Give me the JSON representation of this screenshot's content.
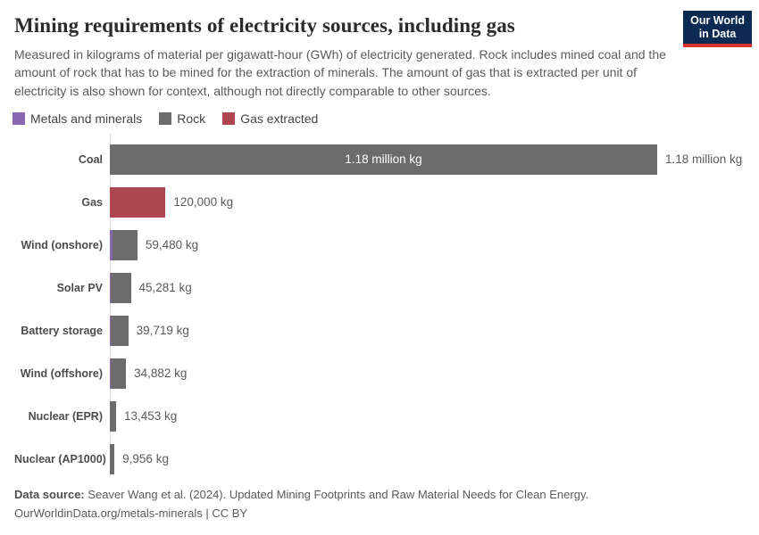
{
  "logo": {
    "line1": "Our World",
    "line2": "in Data"
  },
  "header": {
    "title": "Mining requirements of electricity sources, including gas",
    "subtitle": "Measured in kilograms of material per gigawatt-hour (GWh) of electricity generated. Rock includes mined coal and the amount of rock that has to be mined for the extraction of minerals. The amount of gas that is extracted per unit of electricity is also shown for context, although not directly comparable to other sources."
  },
  "legend": {
    "items": [
      {
        "key": "metals",
        "label": "Metals and minerals",
        "color": "#8767af"
      },
      {
        "key": "rock",
        "label": "Rock",
        "color": "#6c6c6c"
      },
      {
        "key": "gas",
        "label": "Gas extracted",
        "color": "#ae4651"
      }
    ]
  },
  "chart_data": {
    "type": "bar",
    "orientation": "horizontal",
    "title": "Mining requirements of electricity sources, including gas",
    "unit": "kg of material per GWh",
    "xlim": [
      0,
      1180000
    ],
    "grid": false,
    "legend_position": "top",
    "series_colors": {
      "metals": "#8767af",
      "rock": "#6c6c6c",
      "gas": "#ae4651"
    },
    "categories": [
      "Coal",
      "Gas",
      "Wind (onshore)",
      "Solar PV",
      "Battery storage",
      "Wind (offshore)",
      "Nuclear (EPR)",
      "Nuclear (AP1000)"
    ],
    "rows": [
      {
        "category": "Coal",
        "total": 1180000,
        "value_label": "1.18 million kg",
        "label_inside_bar": "1.18 million kg",
        "segments": [
          {
            "series": "rock",
            "value": 1180000
          }
        ]
      },
      {
        "category": "Gas",
        "total": 120000,
        "value_label": "120,000 kg",
        "segments": [
          {
            "series": "gas",
            "value": 120000
          }
        ]
      },
      {
        "category": "Wind (onshore)",
        "total": 59480,
        "value_label": "59,480 kg",
        "metals_segment_estimated": true,
        "segments": [
          {
            "series": "metals",
            "value": 5000
          },
          {
            "series": "rock",
            "value": 54480
          }
        ]
      },
      {
        "category": "Solar PV",
        "total": 45281,
        "value_label": "45,281 kg",
        "metals_segment_estimated": true,
        "segments": [
          {
            "series": "metals",
            "value": 1500
          },
          {
            "series": "rock",
            "value": 43781
          }
        ]
      },
      {
        "category": "Battery storage",
        "total": 39719,
        "value_label": "39,719 kg",
        "metals_segment_estimated": true,
        "segments": [
          {
            "series": "metals",
            "value": 1200
          },
          {
            "series": "rock",
            "value": 38519
          }
        ]
      },
      {
        "category": "Wind (offshore)",
        "total": 34882,
        "value_label": "34,882 kg",
        "metals_segment_estimated": true,
        "segments": [
          {
            "series": "metals",
            "value": 1500
          },
          {
            "series": "rock",
            "value": 33382
          }
        ]
      },
      {
        "category": "Nuclear (EPR)",
        "total": 13453,
        "value_label": "13,453 kg",
        "metals_segment_estimated": true,
        "segments": [
          {
            "series": "metals",
            "value": 500
          },
          {
            "series": "rock",
            "value": 12953
          }
        ]
      },
      {
        "category": "Nuclear (AP1000)",
        "total": 9956,
        "value_label": "9,956 kg",
        "metals_segment_estimated": true,
        "segments": [
          {
            "series": "metals",
            "value": 400
          },
          {
            "series": "rock",
            "value": 9556
          }
        ]
      }
    ]
  },
  "footer": {
    "source_label": "Data source:",
    "source_text": " Seaver Wang et al. (2024). Updated Mining Footprints and Raw Material Needs for Clean Energy.",
    "url": "OurWorldinData.org/metals-minerals",
    "license": " | CC BY"
  }
}
